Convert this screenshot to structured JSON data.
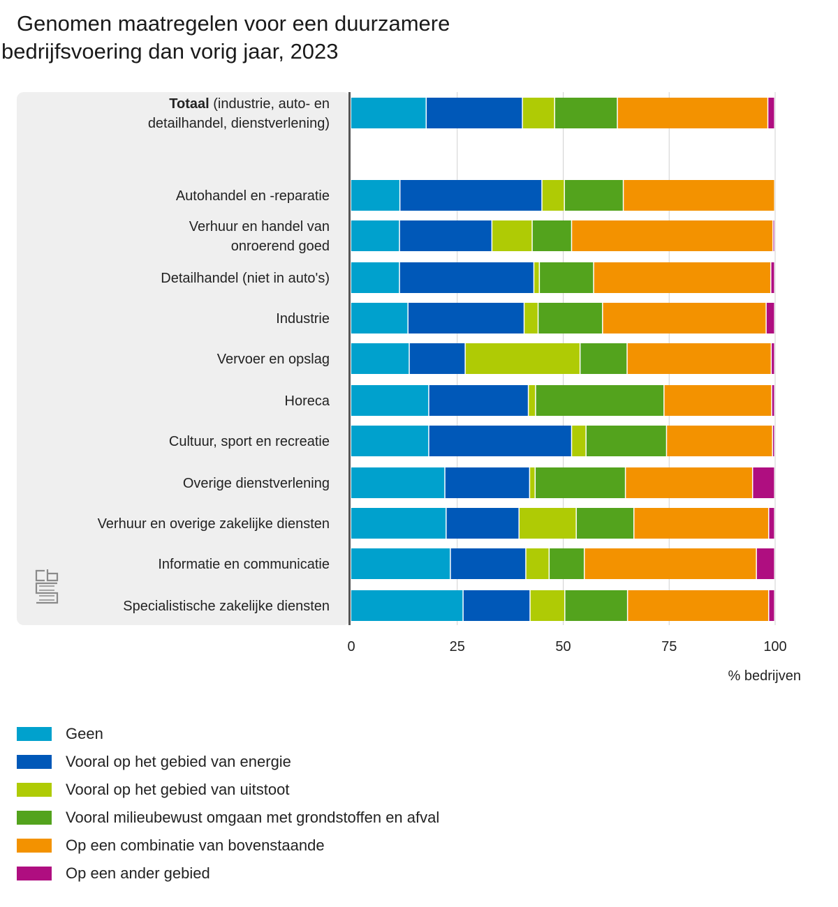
{
  "chart_data": {
    "type": "bar",
    "orientation": "horizontal",
    "stacked": true,
    "title_lines": [
      "Genomen maatregelen voor een duurzamere",
      "bedrijfsvoering dan vorig jaar, 2023"
    ],
    "xlabel": "% bedrijven",
    "xlim": [
      0,
      100
    ],
    "xticks": [
      0,
      25,
      50,
      75,
      100
    ],
    "grid": true,
    "legend_position": "bottom-left",
    "categories": [
      {
        "bold": "Totaal",
        "rest": " (industrie, auto- en",
        "line2": "detailhandel, dienstverlening)"
      },
      {
        "line1": "Autohandel en -reparatie"
      },
      {
        "line1": "Verhuur en handel van",
        "line2": "onroerend goed"
      },
      {
        "line1": "Detailhandel (niet in auto's)"
      },
      {
        "line1": "Industrie"
      },
      {
        "line1": "Vervoer en opslag"
      },
      {
        "line1": "Horeca"
      },
      {
        "line1": "Cultuur, sport en recreatie"
      },
      {
        "line1": "Overige dienstverlening"
      },
      {
        "line1": "Verhuur en overige zakelijke diensten"
      },
      {
        "line1": "Informatie en communicatie"
      },
      {
        "line1": "Specialistische zakelijke diensten"
      }
    ],
    "series": [
      {
        "name": "Geen",
        "color": "#00a1cd",
        "values": [
          17.8,
          11.6,
          11.5,
          11.5,
          13.5,
          13.8,
          18.4,
          18.4,
          22.2,
          22.5,
          23.5,
          26.5
        ]
      },
      {
        "name": "Vooral op het gebied van energie",
        "color": "#0058b8",
        "values": [
          22.7,
          33.5,
          21.8,
          31.7,
          27.4,
          13.2,
          23.5,
          33.7,
          20.0,
          17.2,
          17.8,
          15.8
        ]
      },
      {
        "name": "Vooral op het gebied van uitstoot",
        "color": "#afcb05",
        "values": [
          7.6,
          5.3,
          9.5,
          1.3,
          3.3,
          27.1,
          1.7,
          3.4,
          1.3,
          13.5,
          5.5,
          8.2
        ]
      },
      {
        "name": "Vooral milieubewust omgaan met grondstoffen en afval",
        "color": "#53a31d",
        "values": [
          14.8,
          13.9,
          9.3,
          12.8,
          15.2,
          11.1,
          30.3,
          19.0,
          21.3,
          13.6,
          8.3,
          14.8
        ]
      },
      {
        "name": "Op een combinatie van bovenstaande",
        "color": "#f39200",
        "values": [
          35.5,
          35.7,
          47.5,
          41.8,
          38.6,
          34.0,
          25.4,
          25.0,
          30.0,
          31.8,
          40.6,
          33.3
        ]
      },
      {
        "name": "Op een ander gebied",
        "color": "#af0e80",
        "values": [
          1.6,
          0.0,
          0.4,
          0.9,
          2.0,
          0.8,
          0.7,
          0.5,
          5.2,
          1.4,
          4.3,
          1.4
        ]
      }
    ]
  }
}
